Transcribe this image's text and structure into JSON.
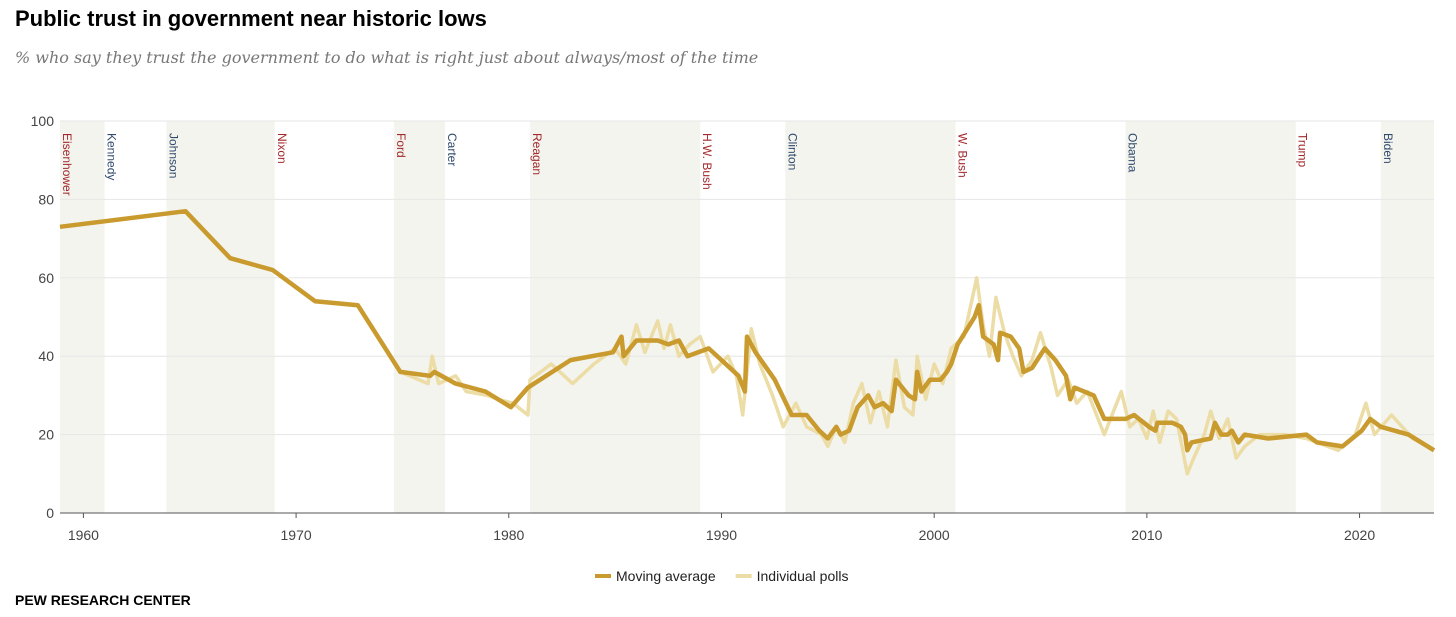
{
  "chart_data": {
    "type": "line",
    "title": "Public trust in government near historic lows",
    "subtitle": "% who say they trust the government to do what is right just about always/most of the time",
    "source": "PEW RESEARCH CENTER",
    "xlim": [
      1958.9,
      2023.5
    ],
    "xticks": [
      1960,
      1970,
      1980,
      1990,
      2000,
      2010,
      2020
    ],
    "ylim": [
      0,
      100
    ],
    "yticks": [
      0,
      20,
      40,
      60,
      80,
      100
    ],
    "grid": true,
    "presidents": [
      {
        "name": "Eisenhower",
        "start": 1953,
        "end": 1961,
        "shaded": true,
        "color": "#a3282b"
      },
      {
        "name": "Kennedy",
        "start": 1961,
        "end": 1963.9,
        "shaded": false,
        "color": "#2f4a6d"
      },
      {
        "name": "Johnson",
        "start": 1963.9,
        "end": 1969,
        "shaded": true,
        "color": "#2f4a6d"
      },
      {
        "name": "Nixon",
        "start": 1969,
        "end": 1974.6,
        "shaded": false,
        "color": "#a3282b"
      },
      {
        "name": "Ford",
        "start": 1974.6,
        "end": 1977,
        "shaded": true,
        "color": "#a3282b"
      },
      {
        "name": "Carter",
        "start": 1977,
        "end": 1981,
        "shaded": false,
        "color": "#2f4a6d"
      },
      {
        "name": "Reagan",
        "start": 1981,
        "end": 1989,
        "shaded": true,
        "color": "#a3282b"
      },
      {
        "name": "H.W. Bush",
        "start": 1989,
        "end": 1993,
        "shaded": false,
        "color": "#a3282b"
      },
      {
        "name": "Clinton",
        "start": 1993,
        "end": 2001,
        "shaded": true,
        "color": "#2f4a6d"
      },
      {
        "name": "W. Bush",
        "start": 2001,
        "end": 2009,
        "shaded": false,
        "color": "#a3282b"
      },
      {
        "name": "Obama",
        "start": 2009,
        "end": 2017,
        "shaded": true,
        "color": "#2f4a6d"
      },
      {
        "name": "Trump",
        "start": 2017,
        "end": 2021,
        "shaded": false,
        "color": "#a3282b"
      },
      {
        "name": "Biden",
        "start": 2021,
        "end": 2023.5,
        "shaded": true,
        "color": "#2f4a6d"
      }
    ],
    "series": [
      {
        "name": "Individual polls",
        "color": "#ecdca6",
        "width": 3.5,
        "x": [
          1958.9,
          1964.8,
          1966.9,
          1968.9,
          1970.9,
          1972.9,
          1974.9,
          1976.2,
          1976.4,
          1976.7,
          1977.5,
          1978,
          1979,
          1979.5,
          1980.2,
          1980.9,
          1981,
          1982,
          1983,
          1984,
          1985,
          1985.5,
          1986,
          1986.4,
          1987,
          1987.3,
          1987.6,
          1988,
          1988.5,
          1989,
          1989.6,
          1990.3,
          1990.7,
          1991,
          1991.4,
          1991.8,
          1992.4,
          1992.9,
          1993.5,
          1994,
          1994.7,
          1995,
          1995.4,
          1995.8,
          1996.2,
          1996.6,
          1997,
          1997.4,
          1997.8,
          1998.2,
          1998.6,
          1999,
          1999.2,
          1999.6,
          2000,
          2000.4,
          2000.8,
          2001.4,
          2001.8,
          2002,
          2002.3,
          2002.6,
          2002.9,
          2003.3,
          2003.7,
          2004.1,
          2004.6,
          2005,
          2005.5,
          2005.8,
          2006.3,
          2006.7,
          2007.2,
          2008,
          2008.8,
          2009.2,
          2009.6,
          2010,
          2010.3,
          2010.6,
          2011,
          2011.4,
          2011.9,
          2012.2,
          2012.7,
          2013,
          2013.4,
          2013.8,
          2014.2,
          2014.6,
          2015.3,
          2016.5,
          2017.5,
          2019,
          2019.8,
          2020.3,
          2020.7,
          2021.5,
          2022.5,
          2023.5
        ],
        "values": [
          73,
          77,
          65,
          62,
          54,
          53,
          36,
          33,
          40,
          33,
          35,
          31,
          30,
          29,
          28,
          25,
          34,
          38,
          33,
          38,
          42,
          38,
          48,
          41,
          49,
          42,
          48,
          40,
          43,
          45,
          36,
          40,
          35,
          25,
          47,
          38,
          30,
          22,
          28,
          22,
          20,
          17,
          22,
          18,
          28,
          33,
          23,
          31,
          22,
          39,
          27,
          25,
          40,
          29,
          38,
          33,
          42,
          45,
          55,
          60,
          48,
          40,
          55,
          46,
          40,
          35,
          39,
          46,
          37,
          30,
          34,
          28,
          31,
          20,
          31,
          22,
          24,
          19,
          26,
          18,
          26,
          24,
          10,
          14,
          20,
          26,
          19,
          24,
          14,
          17,
          20,
          20,
          19,
          16,
          20,
          28,
          20,
          25,
          19,
          16
        ]
      },
      {
        "name": "Moving average",
        "color": "#c99a2e",
        "width": 4.5,
        "x": [
          1958.9,
          1964.8,
          1966.9,
          1968.9,
          1970.9,
          1972.9,
          1974.9,
          1976.3,
          1976.5,
          1977.5,
          1978.9,
          1980.1,
          1980.9,
          1982.9,
          1984.9,
          1985.3,
          1985.4,
          1986,
          1987,
          1987.5,
          1988,
          1988.4,
          1989.4,
          1990,
          1990.8,
          1991.1,
          1991.2,
          1991.6,
          1992.5,
          1993.3,
          1994,
          1994.6,
          1995,
          1995.4,
          1995.6,
          1996,
          1996.4,
          1996.9,
          1997.2,
          1997.6,
          1998,
          1998.2,
          1998.8,
          1999.1,
          1999.2,
          1999.4,
          1999.8,
          2000.3,
          2000.6,
          2000.8,
          2001.1,
          2001.9,
          2002.1,
          2002.3,
          2002.8,
          2003,
          2003.1,
          2003.6,
          2004,
          2004.2,
          2004.6,
          2005.2,
          2005.7,
          2006.2,
          2006.4,
          2006.6,
          2007.5,
          2008,
          2009,
          2009.4,
          2010.1,
          2010.4,
          2010.5,
          2011.2,
          2011.6,
          2011.8,
          2011.9,
          2012.1,
          2013,
          2013.2,
          2013.5,
          2013.8,
          2014,
          2014.3,
          2014.6,
          2015.7,
          2017.5,
          2018,
          2019.2,
          2020.1,
          2020.5,
          2021,
          2022.3,
          2023.5
        ],
        "values": [
          73,
          77,
          65,
          62,
          54,
          53,
          36,
          35,
          36,
          33,
          31,
          27,
          32,
          39,
          41,
          45,
          40,
          44,
          44,
          43,
          44,
          40,
          42,
          39,
          35,
          31,
          45,
          41,
          34,
          25,
          25,
          21,
          19,
          22,
          20,
          21,
          27,
          30,
          27,
          28,
          26,
          34,
          30,
          29,
          36,
          31,
          34,
          34,
          36,
          38,
          43,
          50,
          53,
          45,
          43,
          39,
          46,
          45,
          42,
          36,
          37,
          42,
          39,
          35,
          29,
          32,
          30,
          24,
          24,
          25,
          22,
          21,
          23,
          23,
          22,
          20,
          16,
          18,
          19,
          23,
          20,
          20,
          21,
          18,
          20,
          19,
          20,
          18,
          17,
          21,
          24,
          22,
          20,
          16
        ]
      }
    ]
  }
}
